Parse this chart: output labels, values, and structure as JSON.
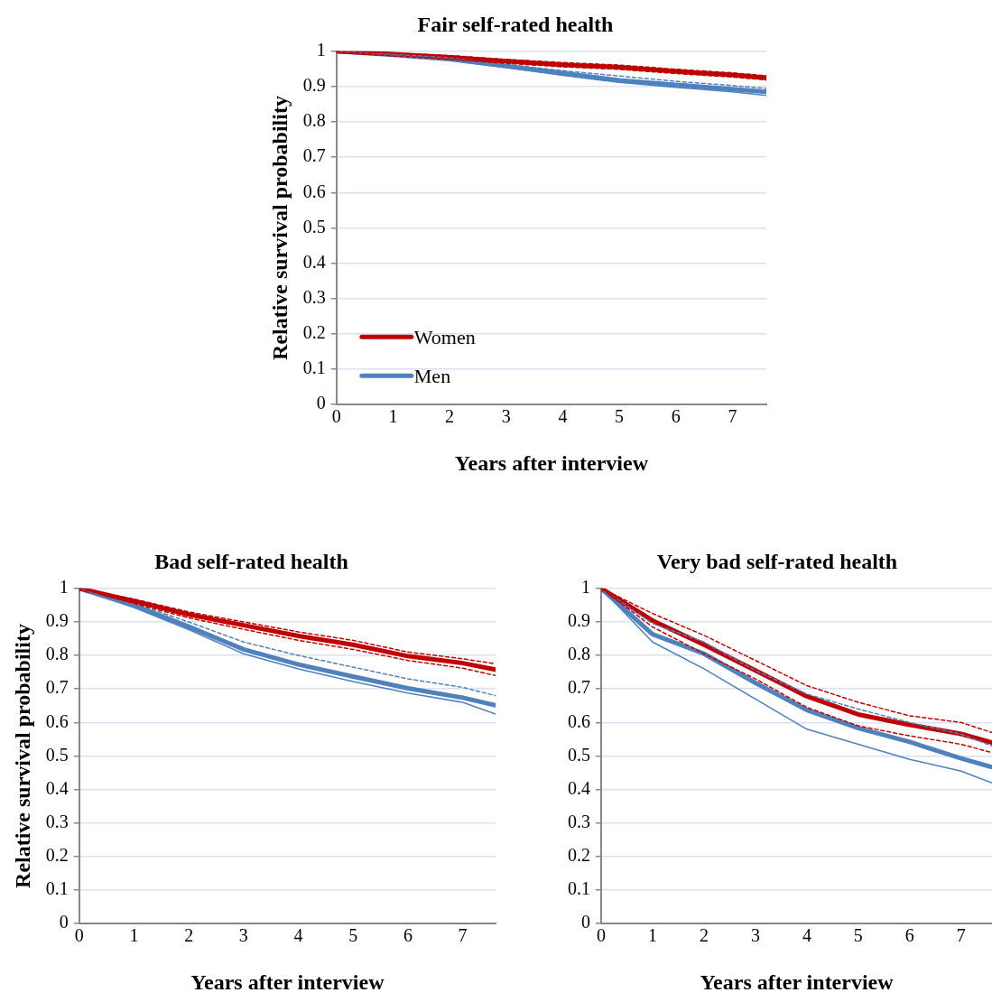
{
  "chart_data": [
    {
      "type": "line",
      "title": "Fair self-rated health",
      "xlabel": "Years after interview",
      "ylabel": "Relative survival probability",
      "x": [
        0,
        1,
        2,
        3,
        4,
        5,
        6,
        7,
        7.6
      ],
      "xlim": [
        0,
        7.6
      ],
      "xticks": [
        0,
        1,
        2,
        3,
        4,
        5,
        6,
        7
      ],
      "ylim": [
        0,
        1
      ],
      "yticks": [
        0,
        0.1,
        0.2,
        0.3,
        0.4,
        0.5,
        0.6,
        0.7,
        0.8,
        0.9,
        1
      ],
      "grid": "y",
      "legend": "bottom left",
      "series": [
        {
          "color": "#c00000",
          "line_style": "dashed",
          "values": [
            1,
            0.995,
            0.988,
            0.977,
            0.968,
            0.961,
            0.949,
            0.939,
            0.931
          ]
        },
        {
          "color": "#c00000",
          "line_style": "dashed",
          "values": [
            1,
            0.987,
            0.977,
            0.966,
            0.956,
            0.949,
            0.937,
            0.927,
            0.919
          ]
        },
        {
          "color": "#4f81bd",
          "line_style": "dashed",
          "values": [
            1,
            0.992,
            0.981,
            0.963,
            0.945,
            0.93,
            0.915,
            0.903,
            0.895
          ]
        },
        {
          "color": "#4f81bd",
          "line_style": "solid",
          "values": [
            1,
            0.988,
            0.975,
            0.954,
            0.932,
            0.912,
            0.898,
            0.885,
            0.875
          ]
        },
        {
          "name": "Women",
          "color": "#c00000",
          "values": [
            1,
            0.992,
            0.983,
            0.972,
            0.962,
            0.955,
            0.943,
            0.933,
            0.925
          ]
        },
        {
          "name": "Men",
          "color": "#4f81bd",
          "values": [
            1,
            0.99,
            0.978,
            0.958,
            0.938,
            0.918,
            0.905,
            0.893,
            0.885
          ]
        }
      ]
    },
    {
      "type": "line",
      "title": "Bad self-rated health",
      "xlabel": "Years after interview",
      "ylabel": "Relative survival probability",
      "x": [
        0,
        1,
        2,
        3,
        4,
        5,
        6,
        7,
        7.6
      ],
      "xlim": [
        0,
        7.6
      ],
      "xticks": [
        0,
        1,
        2,
        3,
        4,
        5,
        6,
        7
      ],
      "ylim": [
        0,
        1
      ],
      "yticks": [
        0,
        0.1,
        0.2,
        0.3,
        0.4,
        0.5,
        0.6,
        0.7,
        0.8,
        0.9,
        1
      ],
      "grid": "y",
      "series": [
        {
          "color": "#c00000",
          "line_style": "dashed",
          "values": [
            1,
            0.968,
            0.93,
            0.9,
            0.87,
            0.845,
            0.81,
            0.79,
            0.775
          ]
        },
        {
          "color": "#c00000",
          "line_style": "dashed",
          "values": [
            1,
            0.955,
            0.912,
            0.878,
            0.845,
            0.818,
            0.785,
            0.762,
            0.74
          ]
        },
        {
          "color": "#4f81bd",
          "line_style": "dashed",
          "values": [
            1,
            0.955,
            0.9,
            0.84,
            0.8,
            0.765,
            0.73,
            0.705,
            0.68
          ]
        },
        {
          "color": "#4f81bd",
          "line_style": "solid",
          "values": [
            1,
            0.943,
            0.877,
            0.805,
            0.76,
            0.722,
            0.688,
            0.66,
            0.625
          ]
        },
        {
          "color": "#c00000",
          "values": [
            1,
            0.962,
            0.922,
            0.89,
            0.858,
            0.832,
            0.798,
            0.777,
            0.758
          ]
        },
        {
          "color": "#4f81bd",
          "values": [
            1,
            0.949,
            0.886,
            0.818,
            0.773,
            0.737,
            0.702,
            0.674,
            0.651
          ]
        }
      ]
    },
    {
      "type": "line",
      "title": "Very bad self-rated health",
      "xlabel": "Years after interview",
      "x": [
        0,
        1,
        2,
        3,
        4,
        5,
        6,
        7,
        7.6
      ],
      "xlim": [
        0,
        7.6
      ],
      "xticks": [
        0,
        1,
        2,
        3,
        4,
        5,
        6,
        7
      ],
      "ylim": [
        0,
        1
      ],
      "yticks": [
        0,
        0.1,
        0.2,
        0.3,
        0.4,
        0.5,
        0.6,
        0.7,
        0.8,
        0.9,
        1
      ],
      "grid": "y",
      "series": [
        {
          "color": "#c00000",
          "line_style": "dashed",
          "values": [
            1,
            0.925,
            0.86,
            0.785,
            0.71,
            0.66,
            0.62,
            0.6,
            0.57
          ]
        },
        {
          "color": "#c00000",
          "line_style": "dashed",
          "values": [
            1,
            0.885,
            0.805,
            0.73,
            0.645,
            0.59,
            0.56,
            0.535,
            0.51
          ]
        },
        {
          "color": "#4f81bd",
          "line_style": "dashed",
          "values": [
            1,
            0.895,
            0.84,
            0.755,
            0.685,
            0.64,
            0.6,
            0.565,
            0.53
          ]
        },
        {
          "color": "#4f81bd",
          "line_style": "solid",
          "values": [
            1,
            0.84,
            0.76,
            0.67,
            0.58,
            0.535,
            0.49,
            0.455,
            0.42
          ]
        },
        {
          "color": "#c00000",
          "values": [
            1,
            0.904,
            0.832,
            0.755,
            0.678,
            0.624,
            0.593,
            0.566,
            0.54
          ]
        },
        {
          "color": "#4f81bd",
          "values": [
            1,
            0.863,
            0.805,
            0.718,
            0.637,
            0.583,
            0.542,
            0.493,
            0.467
          ]
        }
      ]
    }
  ]
}
